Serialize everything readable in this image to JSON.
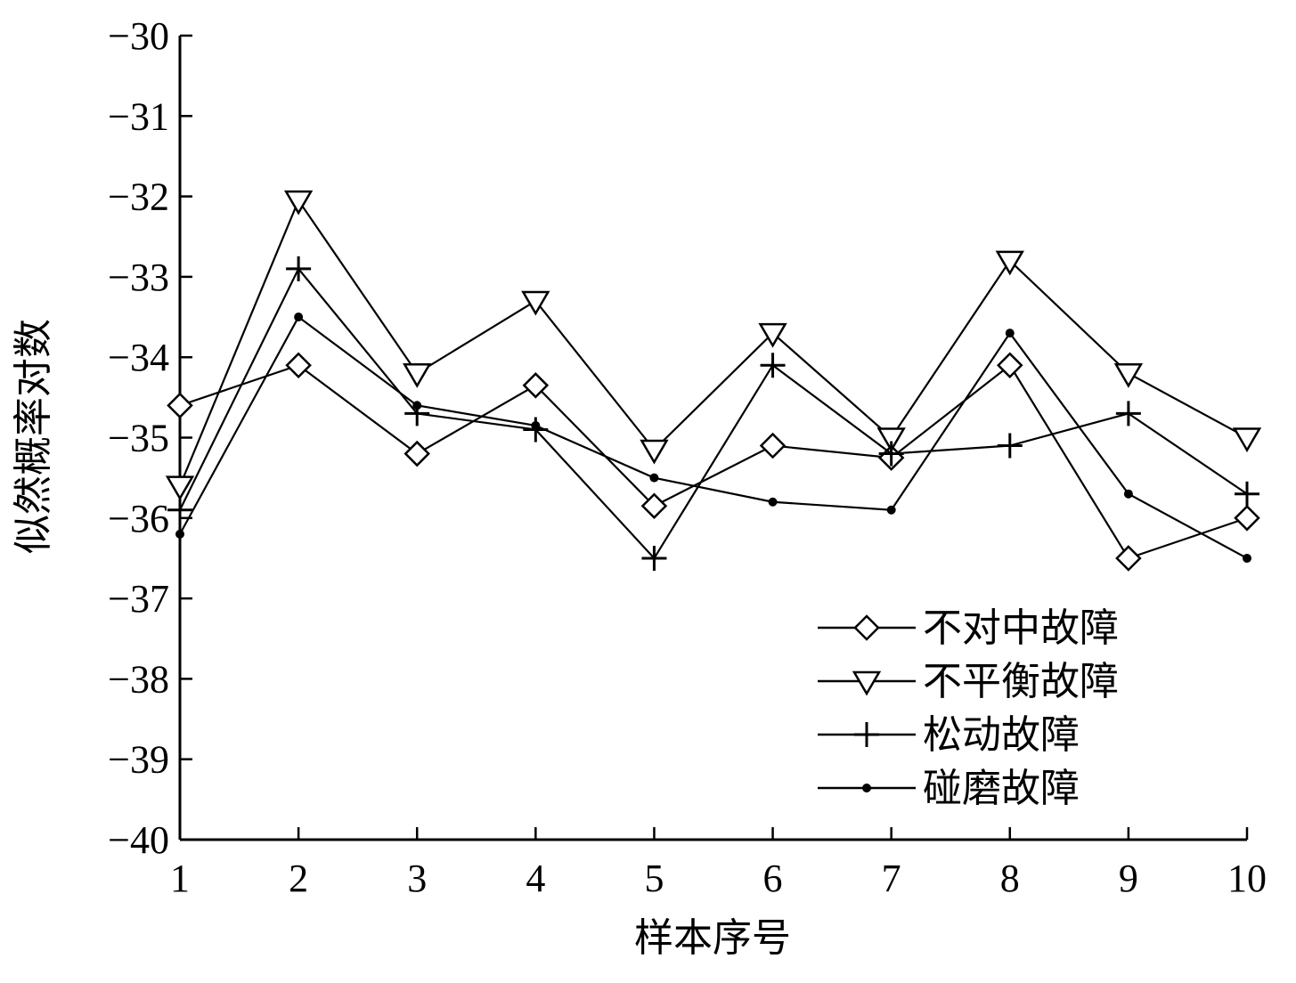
{
  "chart_data": {
    "type": "line",
    "title": "",
    "xlabel": "样本序号",
    "ylabel": "似然概率对数",
    "x": [
      1,
      2,
      3,
      4,
      5,
      6,
      7,
      8,
      9,
      10
    ],
    "xticks": [
      "1",
      "2",
      "3",
      "4",
      "5",
      "6",
      "7",
      "8",
      "9",
      "10"
    ],
    "yticks": [
      "−30",
      "−31",
      "−32",
      "−33",
      "−34",
      "−35",
      "−36",
      "−37",
      "−38",
      "−39",
      "−40"
    ],
    "ytick_values": [
      -30,
      -31,
      -32,
      -33,
      -34,
      -35,
      -36,
      -37,
      -38,
      -39,
      -40
    ],
    "xlim": [
      1,
      10
    ],
    "ylim": [
      -40,
      -30
    ],
    "grid": false,
    "legend_position": "bottom-right",
    "series": [
      {
        "name": "不对中故障",
        "marker": "diamond",
        "values": [
          -34.6,
          -34.1,
          -35.2,
          -34.35,
          -35.85,
          -35.1,
          -35.25,
          -34.1,
          -36.5,
          -36.0
        ]
      },
      {
        "name": "不平衡故障",
        "marker": "triangle-down",
        "values": [
          -35.6,
          -32.05,
          -34.2,
          -33.3,
          -35.15,
          -33.7,
          -35.0,
          -32.8,
          -34.2,
          -35.0
        ]
      },
      {
        "name": "松动故障",
        "marker": "plus",
        "values": [
          -35.9,
          -32.9,
          -34.7,
          -34.9,
          -36.5,
          -34.1,
          -35.2,
          -35.1,
          -34.7,
          -35.7
        ]
      },
      {
        "name": "碰磨故障",
        "marker": "dot",
        "values": [
          -36.2,
          -33.5,
          -34.6,
          -34.85,
          -35.5,
          -35.8,
          -35.9,
          -33.7,
          -35.7,
          -36.5
        ]
      }
    ]
  }
}
